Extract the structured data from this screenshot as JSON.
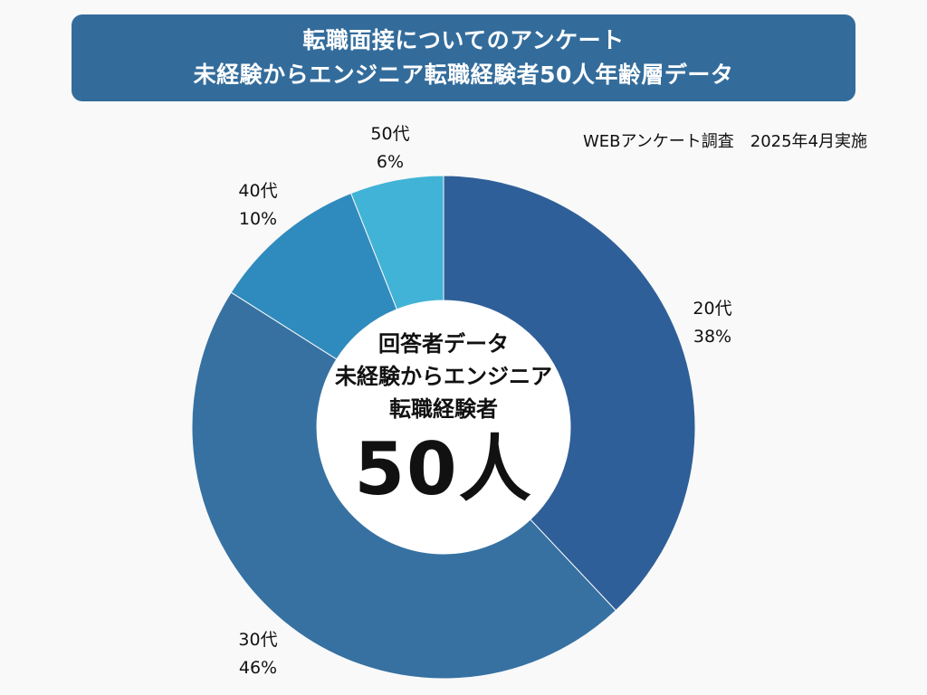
{
  "title": {
    "line1": "転職面接についてのアンケート",
    "line2": "未経験からエンジニア転職経験者50人年齢層データ"
  },
  "survey_note": "WEBアンケート調査　2025年4月実施",
  "center": {
    "line1": "回答者データ",
    "line2": "未経験からエンジニア",
    "line3": "転職経験者",
    "count": "50人"
  },
  "colors": {
    "background": "#f9f9f9",
    "banner": "#336c9b"
  },
  "chart_data": {
    "type": "pie",
    "donut": true,
    "categories": [
      "20代",
      "30代",
      "40代",
      "50代"
    ],
    "values": [
      38,
      46,
      10,
      6
    ],
    "value_labels": [
      "38%",
      "46%",
      "10%",
      "6%"
    ],
    "colors": [
      "#2f5f98",
      "#3671a2",
      "#2f8bbd",
      "#41b3d6"
    ],
    "start": "12 o'clock",
    "direction": "clockwise"
  }
}
